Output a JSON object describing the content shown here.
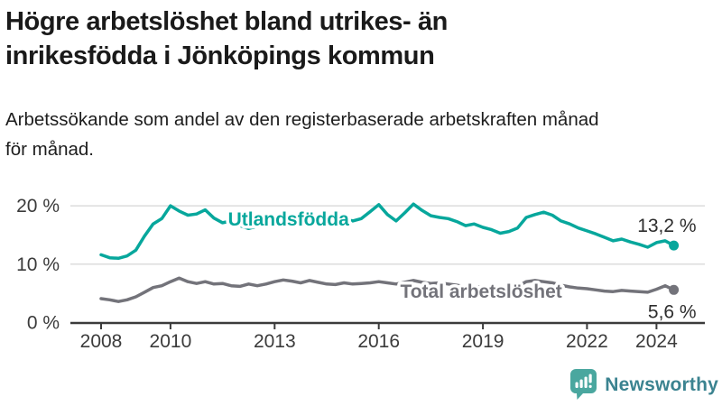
{
  "header": {
    "title": "Högre arbetslöshet bland utrikes- än\ninrikesfödda i Jönköpings kommun",
    "subtitle": "Arbetssökande som andel av den registerbaserade arbetskraften månad\nför månad."
  },
  "footer": {
    "brand": "Newsworthy"
  },
  "colors": {
    "accent_teal": "#07a79c",
    "line_gray": "#73737a",
    "axis": "#3b3b3b",
    "grid": "#dcdcdc",
    "value_label": "#2d2d2d",
    "title_text": "#1a1a1a",
    "logo_teal": "#4aa79f",
    "logo_text": "#3b8390"
  },
  "chart_data": {
    "type": "line",
    "title": "Högre arbetslöshet bland utrikes- än inrikesfödda i Jönköpings kommun",
    "subtitle": "Arbetssökande som andel av den registerbaserade arbetskraften månad för månad.",
    "unit": "%",
    "grid": "horizontal",
    "ylim": [
      0,
      22
    ],
    "x_start": 2008.0,
    "x_step_years": 0.25,
    "x_end": 2024.5,
    "y_axis": {
      "ticks": [
        {
          "value": 0,
          "label": "0 %"
        },
        {
          "value": 10,
          "label": "10 %"
        },
        {
          "value": 20,
          "label": "20 %"
        }
      ]
    },
    "x_axis": {
      "ticks": [
        {
          "value": 2008,
          "label": "2008"
        },
        {
          "value": 2010,
          "label": "2010"
        },
        {
          "value": 2013,
          "label": "2013"
        },
        {
          "value": 2016,
          "label": "2016"
        },
        {
          "value": 2019,
          "label": "2019"
        },
        {
          "value": 2022,
          "label": "2022"
        },
        {
          "value": 2024,
          "label": "2024"
        }
      ]
    },
    "series": [
      {
        "id": "utlandsfodda",
        "name": "Utlandsfödda",
        "color": "#07a79c",
        "end_value": 13.2,
        "end_value_label": "13,2 %",
        "end_label_side": "above",
        "label_pos": {
          "year": 2013.4,
          "pct": 16.6
        },
        "values": [
          11.6,
          11.1,
          11.0,
          11.4,
          12.4,
          14.8,
          16.9,
          17.8,
          20.0,
          19.1,
          18.4,
          18.6,
          19.3,
          17.9,
          17.1,
          17.4,
          16.6,
          16.1,
          16.5,
          17.2,
          17.8,
          18.3,
          17.9,
          17.6,
          17.9,
          17.4,
          17.1,
          17.3,
          17.8,
          17.4,
          17.8,
          19.0,
          20.2,
          18.5,
          17.4,
          18.8,
          20.3,
          19.2,
          18.3,
          18.0,
          17.8,
          17.3,
          16.6,
          16.9,
          16.3,
          15.9,
          15.3,
          15.6,
          16.2,
          18.0,
          18.5,
          18.9,
          18.4,
          17.4,
          16.9,
          16.2,
          15.7,
          15.2,
          14.6,
          14.0,
          14.3,
          13.8,
          13.4,
          12.9,
          13.7,
          14.0,
          13.2
        ]
      },
      {
        "id": "total-arbetsloshet",
        "name": "Total arbetslöshet",
        "color": "#73737a",
        "end_value": 5.6,
        "end_value_label": "5,6 %",
        "end_label_side": "below",
        "label_pos": {
          "year": 2018.95,
          "pct": 4.25
        },
        "values": [
          4.1,
          3.9,
          3.6,
          3.9,
          4.4,
          5.2,
          6.0,
          6.3,
          7.0,
          7.6,
          7.0,
          6.7,
          7.0,
          6.6,
          6.7,
          6.3,
          6.2,
          6.6,
          6.3,
          6.6,
          7.0,
          7.3,
          7.1,
          6.8,
          7.2,
          6.9,
          6.6,
          6.5,
          6.8,
          6.6,
          6.7,
          6.8,
          7.0,
          6.8,
          6.6,
          6.9,
          7.2,
          6.9,
          6.7,
          6.8,
          6.6,
          6.4,
          6.1,
          6.2,
          6.0,
          5.9,
          5.8,
          5.9,
          6.2,
          7.0,
          7.2,
          7.0,
          6.8,
          6.4,
          6.1,
          5.9,
          5.8,
          5.6,
          5.4,
          5.3,
          5.5,
          5.4,
          5.3,
          5.2,
          5.7,
          6.3,
          5.6
        ]
      }
    ]
  }
}
